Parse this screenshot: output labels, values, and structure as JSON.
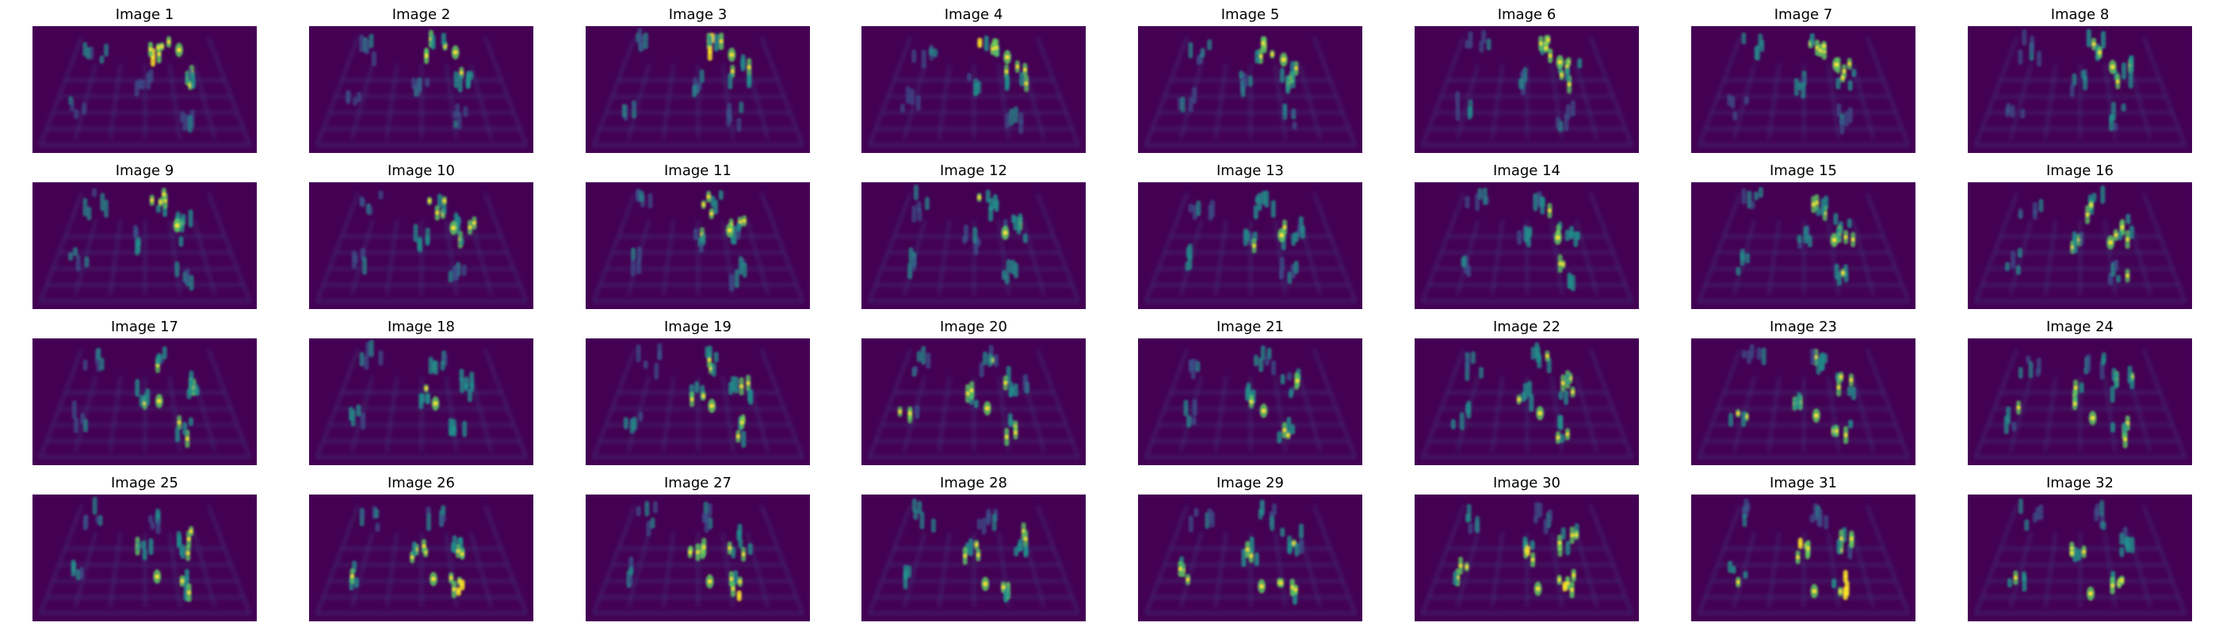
{
  "figure": {
    "background": "#ffffff",
    "colormap": "viridis",
    "colormap_stops": [
      "#440154",
      "#3b528b",
      "#21918c",
      "#5ec962",
      "#fde725"
    ],
    "image_background": "#440154",
    "rows": 4,
    "columns": 8
  },
  "panels": [
    {
      "title": "Image 1"
    },
    {
      "title": "Image 2"
    },
    {
      "title": "Image 3"
    },
    {
      "title": "Image 4"
    },
    {
      "title": "Image 5"
    },
    {
      "title": "Image 6"
    },
    {
      "title": "Image 7"
    },
    {
      "title": "Image 8"
    },
    {
      "title": "Image 9"
    },
    {
      "title": "Image 10"
    },
    {
      "title": "Image 11"
    },
    {
      "title": "Image 12"
    },
    {
      "title": "Image 13"
    },
    {
      "title": "Image 14"
    },
    {
      "title": "Image 15"
    },
    {
      "title": "Image 16"
    },
    {
      "title": "Image 17"
    },
    {
      "title": "Image 18"
    },
    {
      "title": "Image 19"
    },
    {
      "title": "Image 20"
    },
    {
      "title": "Image 21"
    },
    {
      "title": "Image 22"
    },
    {
      "title": "Image 23"
    },
    {
      "title": "Image 24"
    },
    {
      "title": "Image 25"
    },
    {
      "title": "Image 26"
    },
    {
      "title": "Image 27"
    },
    {
      "title": "Image 28"
    },
    {
      "title": "Image 29"
    },
    {
      "title": "Image 30"
    },
    {
      "title": "Image 31"
    },
    {
      "title": "Image 32"
    }
  ]
}
